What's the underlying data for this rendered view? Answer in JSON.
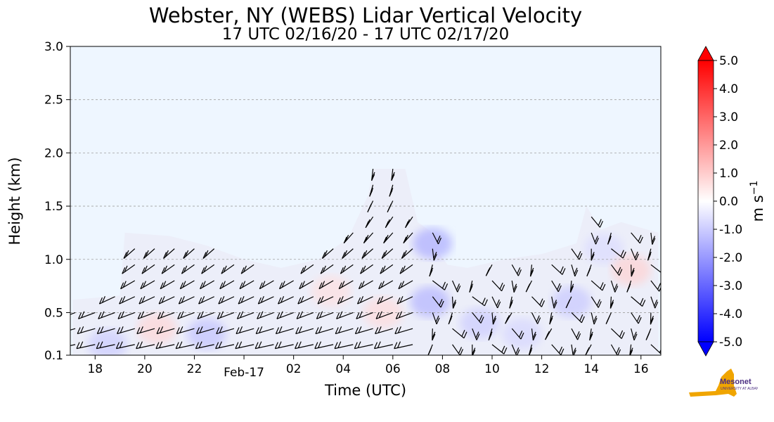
{
  "chart_data": {
    "type": "heatmap",
    "title": "Webster, NY (WEBS) Lidar Vertical Velocity",
    "subtitle": "17 UTC 02/16/20 - 17 UTC 02/17/20",
    "xlabel": "Time (UTC)",
    "ylabel": "Height (km)",
    "x_range_hours": [
      17.0,
      40.8
    ],
    "y_range_km": [
      0.1,
      3.0
    ],
    "x_ticks": [
      {
        "hour": 18,
        "label": "18"
      },
      {
        "hour": 20,
        "label": "20"
      },
      {
        "hour": 22,
        "label": "22"
      },
      {
        "hour": 24,
        "label": "Feb-17"
      },
      {
        "hour": 26,
        "label": "02"
      },
      {
        "hour": 28,
        "label": "04"
      },
      {
        "hour": 30,
        "label": "06"
      },
      {
        "hour": 32,
        "label": "08"
      },
      {
        "hour": 34,
        "label": "10"
      },
      {
        "hour": 36,
        "label": "12"
      },
      {
        "hour": 38,
        "label": "14"
      },
      {
        "hour": 40,
        "label": "16"
      }
    ],
    "y_ticks": [
      {
        "value": 0.1,
        "label": "0.1"
      },
      {
        "value": 0.5,
        "label": "0.5"
      },
      {
        "value": 1.0,
        "label": "1.0"
      },
      {
        "value": 1.5,
        "label": "1.5"
      },
      {
        "value": 2.0,
        "label": "2.0"
      },
      {
        "value": 2.5,
        "label": "2.5"
      },
      {
        "value": 3.0,
        "label": "3.0"
      }
    ],
    "grid": {
      "horizontal_dashed": true,
      "vertical": false
    },
    "colorbar": {
      "label": "m s",
      "label_superscript": "−1",
      "range": [
        -5.0,
        5.0
      ],
      "extend": "both",
      "tick_labels": [
        "5.0",
        "4.0",
        "3.0",
        "2.0",
        "1.0",
        "0.0",
        "-1.0",
        "-2.0",
        "-3.0",
        "-4.0",
        "-5.0"
      ],
      "tick_values": [
        5,
        4,
        3,
        2,
        1,
        0,
        -1,
        -2,
        -3,
        -4,
        -5
      ],
      "colors": {
        "max": "#ff0000",
        "zero": "#ffffff",
        "min": "#0000ff"
      }
    },
    "background_color": "#eef6ff",
    "data_coverage_top_km": [
      {
        "hour": 17.1,
        "top": 0.62
      },
      {
        "hour": 19.0,
        "top": 0.66
      },
      {
        "hour": 19.2,
        "top": 1.25
      },
      {
        "hour": 21.0,
        "top": 1.22
      },
      {
        "hour": 22.5,
        "top": 1.13
      },
      {
        "hour": 24.0,
        "top": 1.0
      },
      {
        "hour": 25.5,
        "top": 0.92
      },
      {
        "hour": 27.0,
        "top": 1.0
      },
      {
        "hour": 28.2,
        "top": 1.2
      },
      {
        "hour": 29.0,
        "top": 1.6
      },
      {
        "hour": 29.2,
        "top": 1.85
      },
      {
        "hour": 30.5,
        "top": 1.85
      },
      {
        "hour": 31.0,
        "top": 1.35
      },
      {
        "hour": 31.6,
        "top": 1.25
      },
      {
        "hour": 31.9,
        "top": 1.05
      },
      {
        "hour": 32.2,
        "top": 0.95
      },
      {
        "hour": 33.0,
        "top": 0.92
      },
      {
        "hour": 34.5,
        "top": 1.0
      },
      {
        "hour": 36.0,
        "top": 1.05
      },
      {
        "hour": 37.4,
        "top": 1.15
      },
      {
        "hour": 37.8,
        "top": 1.5
      },
      {
        "hour": 38.4,
        "top": 1.28
      },
      {
        "hour": 39.2,
        "top": 1.35
      },
      {
        "hour": 40.7,
        "top": 1.25
      }
    ],
    "velocity_patches": [
      {
        "hour": 18.5,
        "height": 0.2,
        "w": -1.0
      },
      {
        "hour": 20.5,
        "height": 0.35,
        "w": 0.8
      },
      {
        "hour": 22.5,
        "height": 0.3,
        "w": -1.2
      },
      {
        "hour": 27.5,
        "height": 0.7,
        "w": 0.6
      },
      {
        "hour": 29.6,
        "height": 0.5,
        "w": 0.7
      },
      {
        "hour": 31.5,
        "height": 0.6,
        "w": -1.5
      },
      {
        "hour": 31.6,
        "height": 1.15,
        "w": -1.6
      },
      {
        "hour": 33.5,
        "height": 0.4,
        "w": -1.0
      },
      {
        "hour": 35.2,
        "height": 0.3,
        "w": -0.8
      },
      {
        "hour": 37.2,
        "height": 0.6,
        "w": -1.1
      },
      {
        "hour": 38.5,
        "height": 1.1,
        "w": -0.7
      },
      {
        "hour": 39.6,
        "height": 0.9,
        "w": 0.9
      }
    ],
    "wind_barb_columns_hours": [
      17.2,
      18.0,
      18.8,
      19.6,
      20.4,
      21.2,
      22.0,
      22.8,
      23.6,
      24.4,
      25.2,
      26.0,
      26.8,
      27.6,
      28.4,
      29.2,
      30.0,
      30.8,
      31.6,
      32.4,
      33.2,
      34.0,
      34.8,
      35.6,
      36.4,
      37.2,
      38.0,
      38.8,
      39.6,
      40.4
    ],
    "wind_barb_levels_km": [
      0.2,
      0.35,
      0.5,
      0.65,
      0.8,
      0.95,
      1.1,
      1.25,
      1.4,
      1.55,
      1.7,
      1.85
    ]
  },
  "logo": {
    "text": "NYS Mesonet",
    "subtext": "UNIVERSITY AT ALBANY",
    "colors": {
      "state": "#f0a500",
      "text": "#4b2e83"
    }
  }
}
